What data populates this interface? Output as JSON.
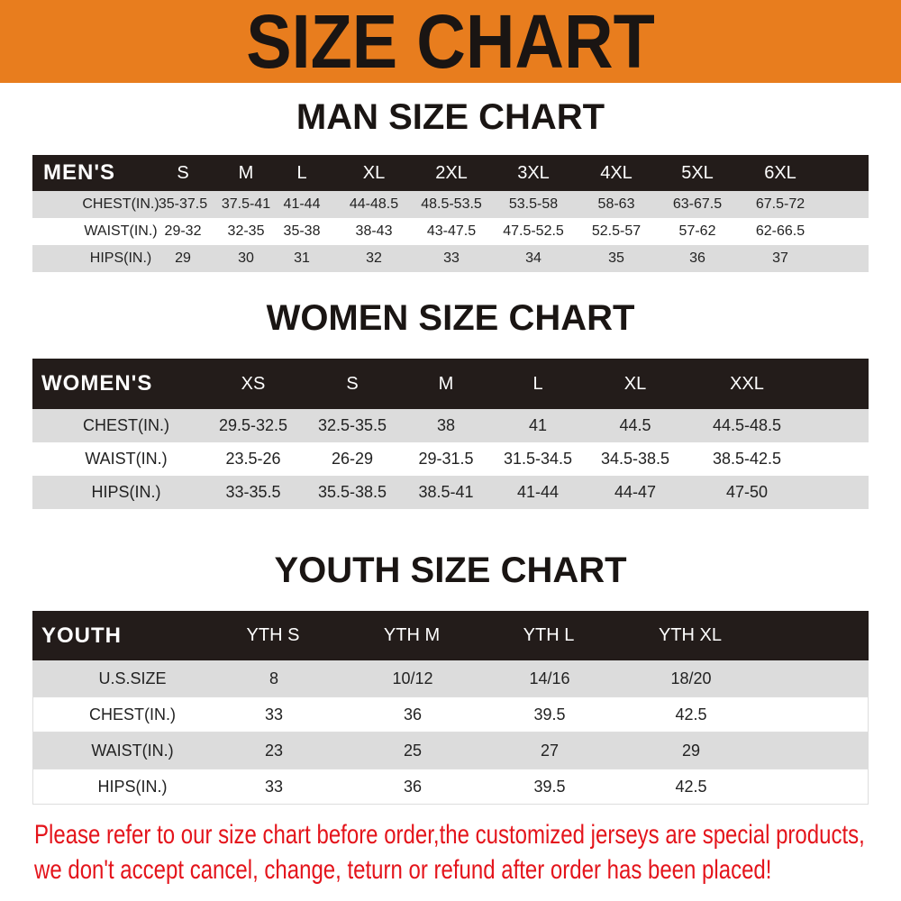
{
  "banner": "SIZE CHART",
  "men": {
    "title": "MAN SIZE CHART",
    "header": "MEN'S",
    "sizes": [
      "S",
      "M",
      "L",
      "XL",
      "2XL",
      "3XL",
      "4XL",
      "5XL",
      "6XL"
    ],
    "rows": [
      {
        "label": "CHEST(IN.)",
        "values": [
          "35-37.5",
          "37.5-41",
          "41-44",
          "44-48.5",
          "48.5-53.5",
          "53.5-58",
          "58-63",
          "63-67.5",
          "67.5-72"
        ]
      },
      {
        "label": "WAIST(IN.)",
        "values": [
          "29-32",
          "32-35",
          "35-38",
          "38-43",
          "43-47.5",
          "47.5-52.5",
          "52.5-57",
          "57-62",
          "62-66.5"
        ]
      },
      {
        "label": "HIPS(IN.)",
        "values": [
          "29",
          "30",
          "31",
          "32",
          "33",
          "34",
          "35",
          "36",
          "37"
        ]
      }
    ]
  },
  "women": {
    "title": "WOMEN SIZE CHART",
    "header": "WOMEN'S",
    "sizes": [
      "XS",
      "S",
      "M",
      "L",
      "XL",
      "XXL"
    ],
    "rows": [
      {
        "label": "CHEST(IN.)",
        "values": [
          "29.5-32.5",
          "32.5-35.5",
          "38",
          "41",
          "44.5",
          "44.5-48.5"
        ]
      },
      {
        "label": "WAIST(IN.)",
        "values": [
          "23.5-26",
          "26-29",
          "29-31.5",
          "31.5-34.5",
          "34.5-38.5",
          "38.5-42.5"
        ]
      },
      {
        "label": "HIPS(IN.)",
        "values": [
          "33-35.5",
          "35.5-38.5",
          "38.5-41",
          "41-44",
          "44-47",
          "47-50"
        ]
      }
    ]
  },
  "youth": {
    "title": "YOUTH SIZE CHART",
    "header": "YOUTH",
    "sizes": [
      "YTH S",
      "YTH M",
      "YTH L",
      "YTH XL"
    ],
    "rows": [
      {
        "label": "U.S.SIZE",
        "values": [
          "8",
          "10/12",
          "14/16",
          "18/20"
        ]
      },
      {
        "label": "CHEST(IN.)",
        "values": [
          "33",
          "36",
          "39.5",
          "42.5"
        ]
      },
      {
        "label": "WAIST(IN.)",
        "values": [
          "23",
          "25",
          "27",
          "29"
        ]
      },
      {
        "label": "HIPS(IN.)",
        "values": [
          "33",
          "36",
          "39.5",
          "42.5"
        ]
      }
    ]
  },
  "note": [
    "Please refer to our size chart before order,the customized jerseys are special products,",
    "we don't accept cancel, change, teturn or refund after order has been placed!"
  ],
  "colors": {
    "banner": "#e87d1e",
    "header_row": "#231c1a",
    "stripe": "#dcdcdc",
    "note": "#e4141b"
  }
}
